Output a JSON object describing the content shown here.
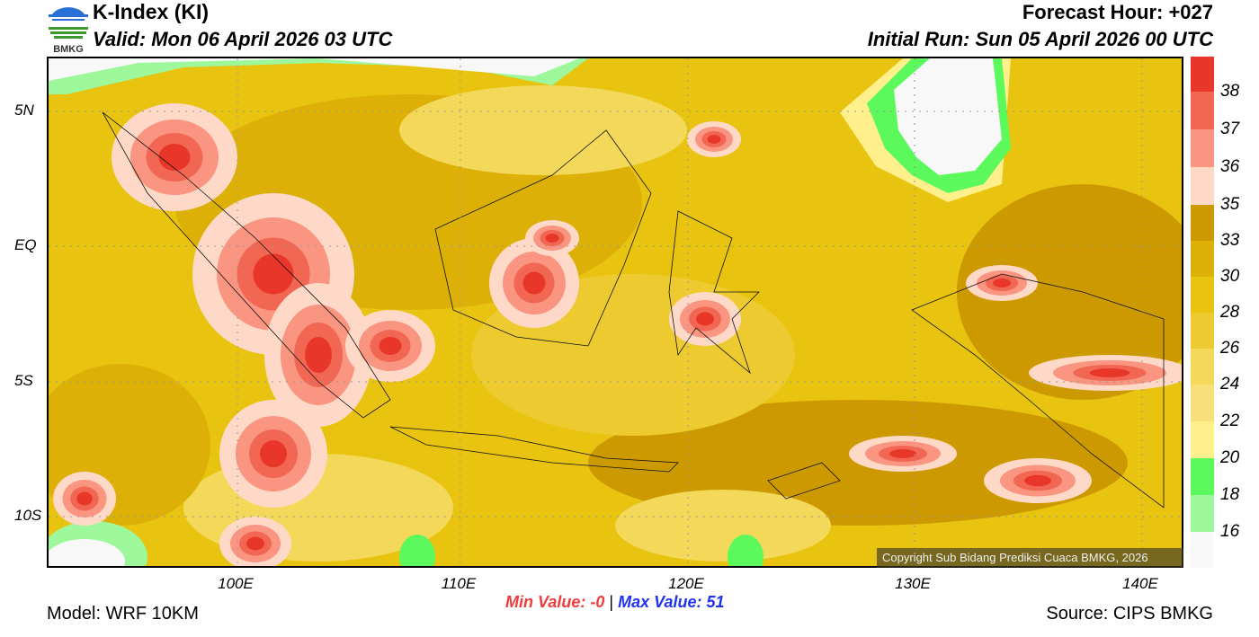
{
  "header": {
    "title": "K-Index (KI)",
    "valid": "Valid: Mon 06 April 2026 03 UTC",
    "forecast_hour": "Forecast Hour: +027",
    "initial_run": "Initial Run: Sun 05 April 2026 00 UTC",
    "logo_text": "BMKG"
  },
  "axes": {
    "lon_labels": [
      "100E",
      "110E",
      "120E",
      "130E",
      "140E"
    ],
    "lat_labels": [
      "5N",
      "EQ",
      "5S",
      "10S"
    ]
  },
  "colorbar": {
    "labels": [
      "38",
      "37",
      "36",
      "35",
      "33",
      "30",
      "28",
      "26",
      "24",
      "22",
      "20",
      "18",
      "16"
    ],
    "colors": [
      "#E8372A",
      "#F26753",
      "#F99580",
      "#FFD9C8",
      "#CC9A00",
      "#DDB007",
      "#E8C30F",
      "#EDCB30",
      "#F3D85A",
      "#F7E07A",
      "#FFF08C",
      "#5CF95C",
      "#9DF89B",
      "#F8F8F8"
    ]
  },
  "copyright": "Copyright Sub Bidang Prediksi Cuaca BMKG, 2026",
  "stats": {
    "min_label": "Min Value:",
    "min_value": "-0",
    "separator": "|",
    "max_label": "Max Value:",
    "max_value": "51",
    "min_color": "#F03C3C",
    "max_color": "#2233EE"
  },
  "footer": {
    "model": "Model: WRF 10KM",
    "source": "Source: CIPS BMKG"
  }
}
